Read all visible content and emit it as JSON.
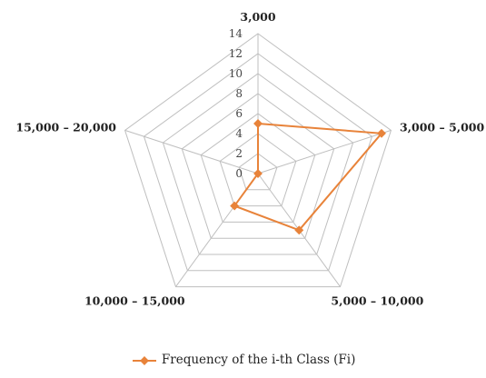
{
  "chart_data": {
    "type": "radar",
    "categories": [
      "3,000",
      "3,000 – 5,000",
      "5,000 – 10,000",
      "10,000 – 15,000",
      "15,000 – 20,000"
    ],
    "series": [
      {
        "name": "Frequency of the i-th Class (Fi)",
        "values": [
          5,
          13,
          7,
          4,
          0
        ],
        "color": "#E8833A"
      }
    ],
    "r_ticks": [
      "0",
      "2",
      "4",
      "6",
      "8",
      "10",
      "12",
      "14"
    ],
    "r_range": [
      0,
      14
    ],
    "grid": true,
    "legend_position": "bottom"
  }
}
